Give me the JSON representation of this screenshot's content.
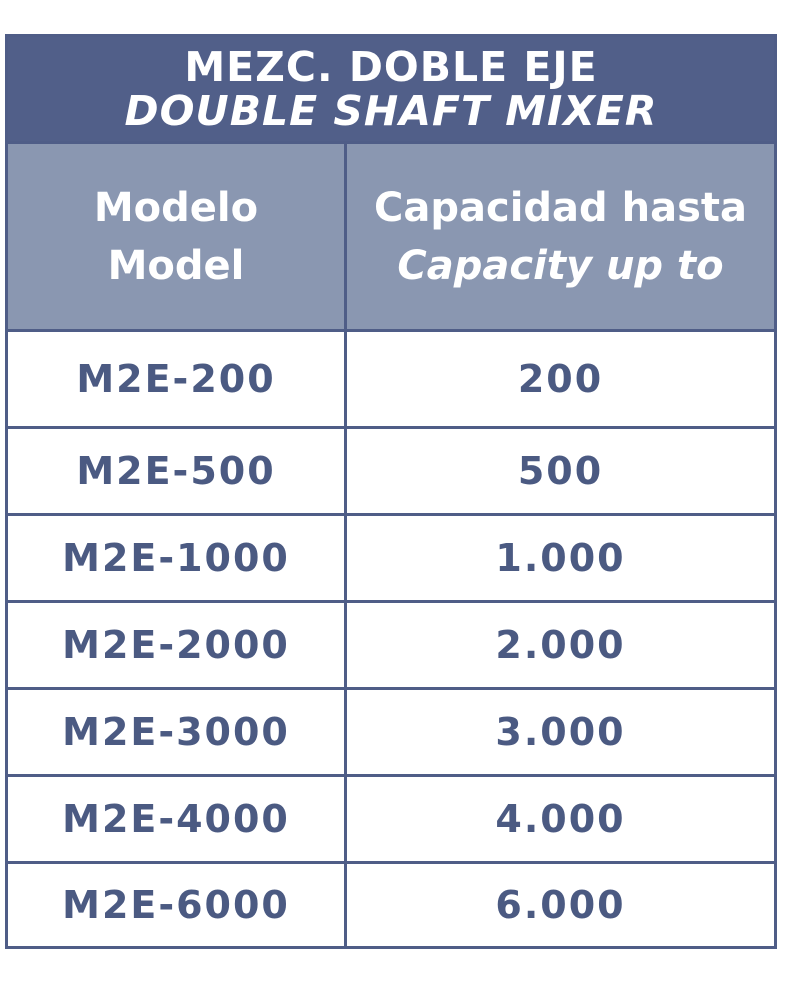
{
  "title": {
    "line1": "MEZC. DOBLE EJE",
    "line2": "DOUBLE SHAFT MIXER"
  },
  "table": {
    "headers": [
      [
        "Modelo",
        "Model"
      ],
      [
        "Capacidad hasta",
        "Capacity up to"
      ]
    ],
    "rows": [
      [
        "M2E-200",
        "200"
      ],
      [
        "M2E-500",
        "500"
      ],
      [
        "M2E-1000",
        "1.000"
      ],
      [
        "M2E-2000",
        "2.000"
      ],
      [
        "M2E-3000",
        "3.000"
      ],
      [
        "M2E-4000",
        "4.000"
      ],
      [
        "M2E-6000",
        "6.000"
      ]
    ]
  }
}
